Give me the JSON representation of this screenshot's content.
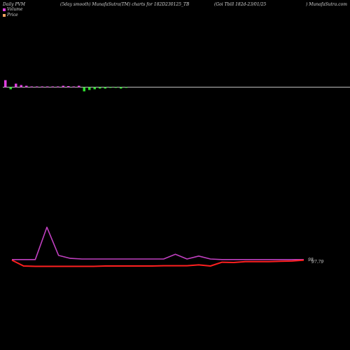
{
  "header": {
    "left": "Daily PVM",
    "smooth": "(5day smooth) MunafaSutra(TM) charts for 182D230125_TB",
    "name": "(Goi  Tbill 182d-23/01/25",
    "site": ") MunafaSutra.com"
  },
  "legend": {
    "volume_label": "Volume",
    "volume_color": "#e040e0",
    "price_label": "Price",
    "price_color": "#f4a460"
  },
  "end_labels": {
    "upper": "98",
    "lower": "97.79"
  },
  "chart_data": {
    "type": "line",
    "bars": {
      "values": [
        10,
        -3,
        5,
        3,
        2,
        1,
        1,
        0.5,
        1,
        0.5,
        1,
        2,
        1.5,
        1,
        2,
        -6,
        -4,
        -3,
        -2,
        -2,
        -1,
        -1,
        -2,
        -1
      ],
      "colors": [
        "#e040e0",
        "#30e030",
        "#e040e0",
        "#e040e0",
        "#e040e0",
        "#e040e0",
        "#e040e0",
        "#e040e0",
        "#e040e0",
        "#e040e0",
        "#e040e0",
        "#e040e0",
        "#e040e0",
        "#e040e0",
        "#e040e0",
        "#30e030",
        "#30e030",
        "#30e030",
        "#30e030",
        "#30e030",
        "#30e030",
        "#30e030",
        "#30e030",
        "#30e030"
      ]
    },
    "series": [
      {
        "color": "#c040c0",
        "values": [
          5,
          5,
          5,
          60,
          12,
          7,
          6,
          6,
          6,
          6,
          6,
          6,
          6,
          6,
          14,
          6,
          11,
          6,
          5,
          5,
          5,
          5,
          5,
          5,
          5,
          5
        ]
      },
      {
        "color": "#ff2020",
        "values": [
          4,
          -6,
          -6.5,
          -6.5,
          -6.5,
          -6.5,
          -6.5,
          -6.5,
          -6,
          -6,
          -6,
          -6,
          -6,
          -5.5,
          -5.5,
          -5.5,
          -4,
          -6,
          0.5,
          0,
          1.5,
          1.5,
          1.5,
          2,
          2.5,
          4
        ]
      }
    ]
  }
}
